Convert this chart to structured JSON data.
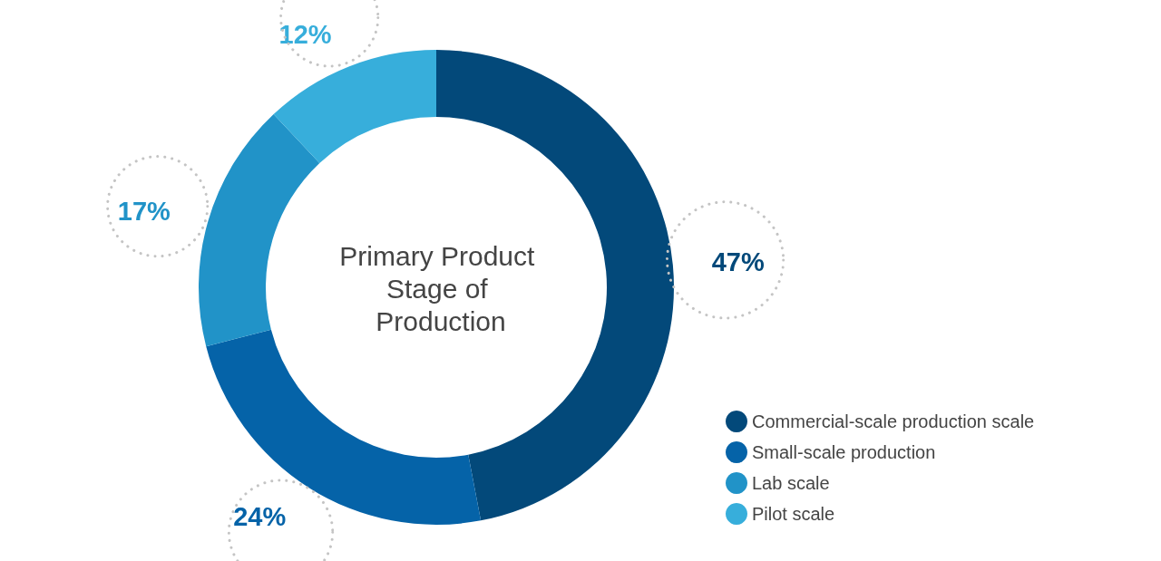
{
  "chart_data": {
    "type": "donut",
    "title": "Primary Product Stage of Production",
    "categories": [
      "Commercial-scale production scale",
      "Small-scale production",
      "Lab scale",
      "Pilot scale"
    ],
    "values": [
      47,
      24,
      17,
      12
    ],
    "colors": [
      "#03497a",
      "#0563a8",
      "#2193c8",
      "#37aedb"
    ],
    "value_labels": [
      "47%",
      "24%",
      "17%",
      "12%"
    ],
    "legend": "bottom right"
  }
}
